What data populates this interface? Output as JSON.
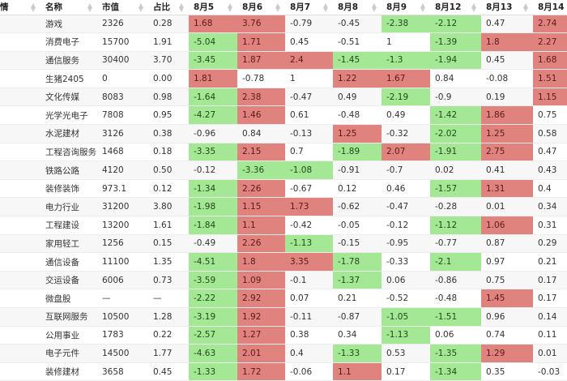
{
  "colors": {
    "up": "#e0837f",
    "down": "#a4e795"
  },
  "headers": [
    "情",
    "名称",
    "市值",
    "占比",
    "8月5",
    "8月6",
    "8月7",
    "8月8",
    "8月9",
    "8月12",
    "8月13",
    "8月14"
  ],
  "rows": [
    [
      "",
      "游戏",
      "2326",
      "0.28",
      "1.68",
      "3.76",
      "-0.79",
      "-0.45",
      "-2.38",
      "-2.12",
      "0.47",
      "2.74"
    ],
    [
      "",
      "消费电子",
      "15700",
      "1.91",
      "-5.04",
      "1.71",
      "0.45",
      "-0.51",
      "1",
      "-1.39",
      "1.8",
      "2.27"
    ],
    [
      "",
      "通信服务",
      "30400",
      "3.70",
      "-3.45",
      "1.87",
      "2.4",
      "-1.45",
      "-1.3",
      "-1.94",
      "0.45",
      "1.68"
    ],
    [
      "",
      "生猪2405",
      "0",
      "0.00",
      "1.81",
      "-0.78",
      "1",
      "1.22",
      "1.67",
      "0.84",
      "-0.08",
      "1.51"
    ],
    [
      "",
      "文化传媒",
      "8083",
      "0.98",
      "-1.64",
      "2.38",
      "-0.47",
      "0.49",
      "-2.19",
      "-0.9",
      "0.19",
      "1.15"
    ],
    [
      "",
      "光学光电子",
      "7808",
      "0.95",
      "-4.27",
      "1.46",
      "0.61",
      "-0.48",
      "0.49",
      "-1.42",
      "1.86",
      "0.75"
    ],
    [
      "",
      "水泥建材",
      "3126",
      "0.38",
      "-0.96",
      "0.84",
      "-0.13",
      "1.25",
      "-0.32",
      "-2.02",
      "1.25",
      "0.58"
    ],
    [
      "",
      "工程咨询服务",
      "1468",
      "0.18",
      "-3.35",
      "2.15",
      "0.7",
      "-1.89",
      "2.07",
      "-1.91",
      "2.75",
      "0.47"
    ],
    [
      "",
      "铁路公路",
      "4120",
      "0.50",
      "-0.12",
      "-3.36",
      "-1.08",
      "-0.91",
      "-0.7",
      "0.02",
      "0.41",
      "0.43"
    ],
    [
      "",
      "装修装饰",
      "973.1",
      "0.12",
      "-1.34",
      "2.26",
      "-0.67",
      "0.12",
      "0.46",
      "-1.57",
      "1.31",
      "0.4"
    ],
    [
      "",
      "电力行业",
      "31200",
      "3.80",
      "-1.98",
      "1.15",
      "1.73",
      "-0.62",
      "-0.47",
      "-0.28",
      "0.01",
      "0.34"
    ],
    [
      "",
      "工程建设",
      "13200",
      "1.61",
      "-1.84",
      "1.1",
      "-0.42",
      "-0.05",
      "-0.12",
      "-1.12",
      "1.06",
      "0.31"
    ],
    [
      "",
      "家用轻工",
      "1256",
      "0.15",
      "-0.49",
      "2.26",
      "-1.13",
      "-0.15",
      "-0.95",
      "-0.77",
      "0.87",
      "0.29"
    ],
    [
      "",
      "通信设备",
      "11100",
      "1.35",
      "-4.51",
      "1.8",
      "3.35",
      "-1.78",
      "-0.33",
      "-2.1",
      "0.97",
      "0.21"
    ],
    [
      "",
      "交运设备",
      "6006",
      "0.73",
      "-3.59",
      "1.09",
      "-0.1",
      "-1.37",
      "0.06",
      "-0.86",
      "0.75",
      "0.17"
    ],
    [
      "",
      "微盘股",
      "—",
      "—",
      "-2.22",
      "2.92",
      "0.07",
      "0.21",
      "-0.52",
      "-0.48",
      "1.45",
      "0.17"
    ],
    [
      "",
      "互联网服务",
      "10500",
      "1.28",
      "-3.19",
      "1.92",
      "-0.11",
      "-0.87",
      "-1.05",
      "-1.51",
      "0.96",
      "0.14"
    ],
    [
      "",
      "公用事业",
      "1783",
      "0.22",
      "-2.57",
      "1.27",
      "0.38",
      "0.34",
      "-1.13",
      "0.06",
      "0.74",
      "0.11"
    ],
    [
      "",
      "电子元件",
      "14500",
      "1.77",
      "-4.63",
      "2.01",
      "0.4",
      "-1.33",
      "0.53",
      "-1.35",
      "1.29",
      "0.01"
    ],
    [
      "",
      "装修建材",
      "3658",
      "0.45",
      "-1.33",
      "1.72",
      "-0.06",
      "1.1",
      "0.17",
      "-1.34",
      "0.35",
      "-0.03"
    ]
  ]
}
